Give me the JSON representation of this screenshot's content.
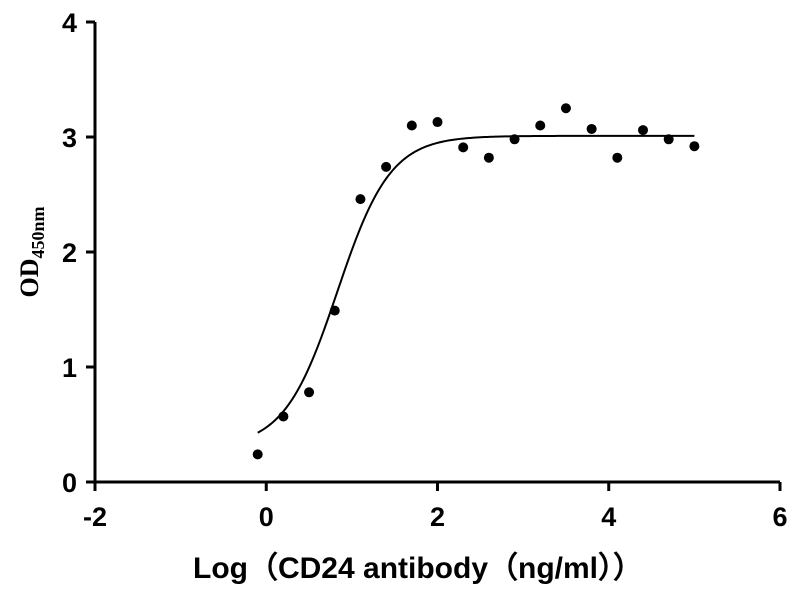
{
  "chart_data": {
    "type": "scatter",
    "xlabel": "Log（CD24 antibody（ng/ml））",
    "ylabel_main": "OD",
    "ylabel_sub": "450nm",
    "xlim": [
      -2,
      6
    ],
    "ylim": [
      0,
      4
    ],
    "x_ticks": [
      "-2",
      "0",
      "2",
      "4",
      "6"
    ],
    "y_ticks": [
      "0",
      "1",
      "2",
      "3",
      "4"
    ],
    "grid": false,
    "series": [
      {
        "kind": "points",
        "x": [
          -0.1,
          0.2,
          0.5,
          0.8,
          1.1,
          1.4,
          1.7,
          2.0,
          2.3,
          2.6,
          2.9,
          3.2,
          3.5,
          3.8,
          4.1,
          4.4,
          4.7,
          5.0
        ],
        "y": [
          0.24,
          0.57,
          0.78,
          1.49,
          2.46,
          2.74,
          3.1,
          3.13,
          2.91,
          2.82,
          2.98,
          3.1,
          3.25,
          3.07,
          2.82,
          3.06,
          2.98,
          2.92
        ]
      },
      {
        "kind": "fit-curve",
        "model": "4PL",
        "bottom": 0.3,
        "top": 3.01,
        "logEC50": 0.83,
        "hillslope": 1.4,
        "x_range": [
          -0.1,
          5.0
        ]
      }
    ]
  }
}
